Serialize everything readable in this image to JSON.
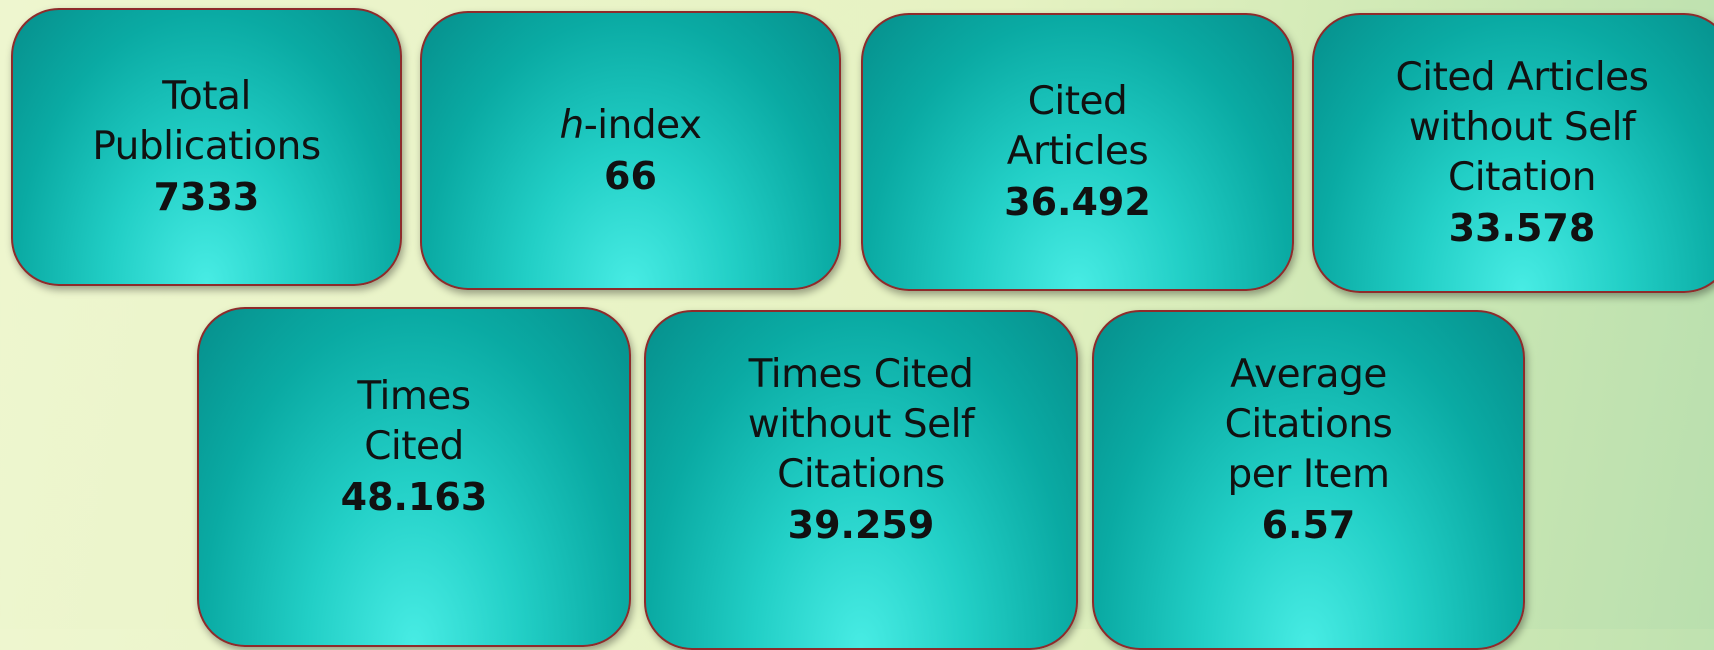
{
  "cards": [
    {
      "lines": [
        "Total",
        "Publications"
      ],
      "value": "7333"
    },
    {
      "lines": [
        "h-index"
      ],
      "value": "66"
    },
    {
      "lines": [
        "Cited",
        "Articles"
      ],
      "value": "36.492"
    },
    {
      "lines": [
        "Cited Articles",
        "without Self",
        "Citation"
      ],
      "value": "33.578"
    },
    {
      "lines": [
        "Times",
        "Cited"
      ],
      "value": "48.163"
    },
    {
      "lines": [
        "Times Cited",
        "without Self",
        "Citations"
      ],
      "value": "39.259"
    },
    {
      "lines": [
        "Average",
        "Citations",
        "per Item"
      ],
      "value": "6.57"
    }
  ]
}
